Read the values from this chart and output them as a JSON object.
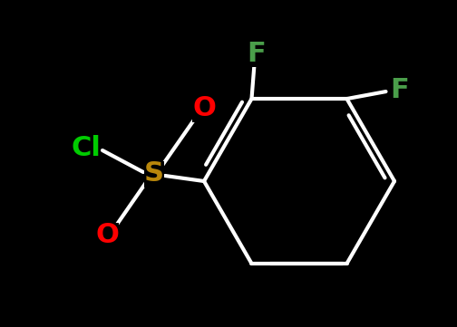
{
  "background_color": "#000000",
  "bond_color": "#ffffff",
  "atom_colors": {
    "Cl": "#00cc00",
    "S": "#b8860b",
    "O": "#ff0000",
    "F": "#4a9e4a",
    "C": "#ffffff"
  },
  "bond_width": 3.0,
  "font_size": 20
}
